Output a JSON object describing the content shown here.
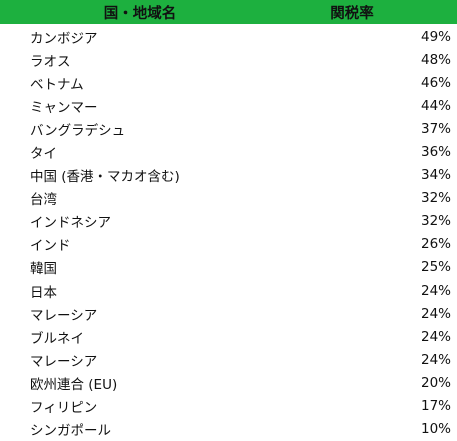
{
  "header_color": "#1db03f",
  "header": {
    "country": "国・地域名",
    "rate": "関税率"
  },
  "rows": [
    {
      "country": "カンボジア",
      "rate": "49%"
    },
    {
      "country": "ラオス",
      "rate": "48%"
    },
    {
      "country": "ベトナム",
      "rate": "46%"
    },
    {
      "country": "ミャンマー",
      "rate": "44%"
    },
    {
      "country": "バングラデシュ",
      "rate": "37%"
    },
    {
      "country": "タイ",
      "rate": "36%"
    },
    {
      "country": "中国 (香港・マカオ含む)",
      "rate": "34%"
    },
    {
      "country": "台湾",
      "rate": "32%"
    },
    {
      "country": "インドネシア",
      "rate": "32%"
    },
    {
      "country": "インド",
      "rate": "26%"
    },
    {
      "country": "韓国",
      "rate": "25%"
    },
    {
      "country": "日本",
      "rate": "24%"
    },
    {
      "country": "マレーシア",
      "rate": "24%"
    },
    {
      "country": "ブルネイ",
      "rate": "24%"
    },
    {
      "country": "マレーシア",
      "rate": "24%"
    },
    {
      "country": "欧州連合 (EU)",
      "rate": "20%"
    },
    {
      "country": "フィリピン",
      "rate": "17%"
    },
    {
      "country": "シンガポール",
      "rate": "10%"
    }
  ]
}
